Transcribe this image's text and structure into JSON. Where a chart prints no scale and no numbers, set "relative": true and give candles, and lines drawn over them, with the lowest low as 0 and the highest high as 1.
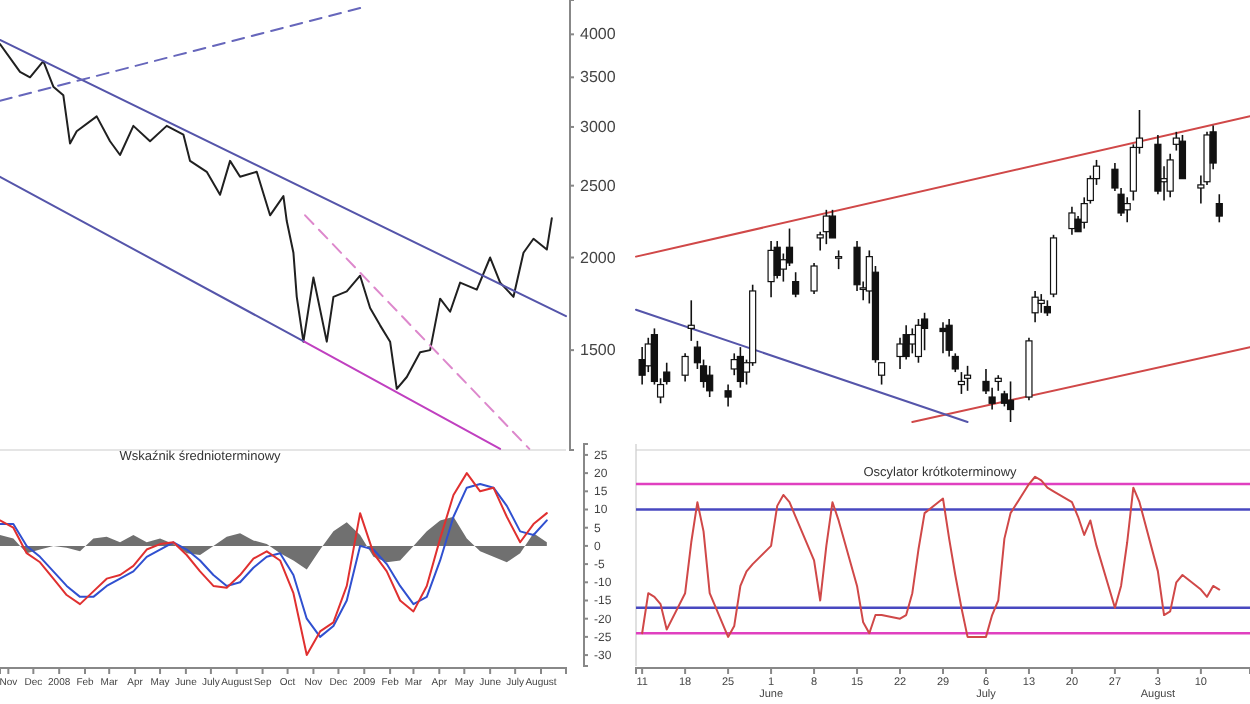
{
  "chart_data": [
    {
      "type": "line",
      "log": true,
      "ylim": [
        1100,
        4450
      ],
      "yticks": [
        1500,
        2000,
        2500,
        3000,
        3500,
        4000
      ],
      "xlim": [
        "2007-10-22",
        "2009-08-31"
      ],
      "tick_labels": "y",
      "series": [
        {
          "color": "#202020",
          "x": [
            "2007-10-22",
            "2007-11-15",
            "2007-11-27",
            "2007-12-13",
            "2007-12-25",
            "2008-01-06",
            "2008-01-14",
            "2008-01-22",
            "2008-02-15",
            "2008-03-02",
            "2008-03-14",
            "2008-03-30",
            "2008-04-19",
            "2008-05-09",
            "2008-05-29",
            "2008-06-06",
            "2008-06-26",
            "2008-07-12",
            "2008-07-24",
            "2008-08-05",
            "2008-08-25",
            "2008-09-10",
            "2008-09-26",
            "2008-09-30",
            "2008-10-08",
            "2008-10-12",
            "2008-10-20",
            "2008-11-01",
            "2008-11-17",
            "2008-11-25",
            "2008-12-11",
            "2008-12-27",
            "2009-01-08",
            "2009-01-20",
            "2009-02-01",
            "2009-02-09",
            "2009-02-21",
            "2009-03-09",
            "2009-03-21",
            "2009-04-02",
            "2009-04-14",
            "2009-04-26",
            "2009-05-16",
            "2009-06-01",
            "2009-06-13",
            "2009-06-29",
            "2009-07-11",
            "2009-07-23",
            "2009-08-08",
            "2009-08-14"
          ],
          "values": [
            3880,
            3560,
            3500,
            3680,
            3400,
            3310,
            2850,
            2960,
            3100,
            2870,
            2750,
            3010,
            2870,
            3010,
            2930,
            2700,
            2610,
            2430,
            2700,
            2570,
            2610,
            2280,
            2420,
            2240,
            2030,
            1770,
            1540,
            1880,
            1540,
            1770,
            1800,
            1890,
            1710,
            1620,
            1540,
            1330,
            1380,
            1490,
            1500,
            1760,
            1690,
            1850,
            1810,
            2000,
            1850,
            1770,
            2030,
            2120,
            2050,
            2260
          ]
        },
        {
          "color": "#5555aa",
          "x": [
            "2007-10-22",
            "2009-08-31"
          ],
          "values": [
            3930,
            1667
          ]
        },
        {
          "color": "#5555aa",
          "x": [
            "2007-10-22",
            "2008-10-21"
          ],
          "values": [
            2570,
            1540
          ]
        },
        {
          "color": "#c040c0",
          "x": [
            "2008-10-21",
            "2009-06-13"
          ],
          "values": [
            1540,
            1104
          ]
        },
        {
          "color": "#dd88cc",
          "line_style": "dashed",
          "x": [
            "2008-10-22",
            "2009-07-18"
          ],
          "values": [
            2280,
            1104
          ]
        },
        {
          "color": "#6666bb",
          "line_style": "dashed",
          "x": [
            "2007-10-22",
            "2008-12-27"
          ],
          "values": [
            3254,
            4340
          ]
        }
      ]
    },
    {
      "type": "line",
      "title": "Wskaźnik średnioterminowy",
      "ylim": [
        -33,
        28
      ],
      "yticks": [
        25,
        20,
        15,
        10,
        5,
        0,
        -5,
        -10,
        -15,
        -20,
        -25,
        -30
      ],
      "xlim": [
        "2007-10-22",
        "2009-08-31"
      ],
      "xticks": [
        {
          "value": "2007-11-01",
          "label": "Nov"
        },
        {
          "value": "2007-12-01",
          "label": "Dec"
        },
        {
          "value": "2008-01-01",
          "label": "2008"
        },
        {
          "value": "2008-02-01",
          "label": "Feb"
        },
        {
          "value": "2008-03-01",
          "label": "Mar"
        },
        {
          "value": "2008-04-01",
          "label": "Apr"
        },
        {
          "value": "2008-05-01",
          "label": "May"
        },
        {
          "value": "2008-06-01",
          "label": "June"
        },
        {
          "value": "2008-07-01",
          "label": "July"
        },
        {
          "value": "2008-08-01",
          "label": "August"
        },
        {
          "value": "2008-09-01",
          "label": "Sep"
        },
        {
          "value": "2008-10-01",
          "label": "Oct"
        },
        {
          "value": "2008-11-01",
          "label": "Nov"
        },
        {
          "value": "2008-12-01",
          "label": "Dec"
        },
        {
          "value": "2009-01-01",
          "label": "2009"
        },
        {
          "value": "2009-02-01",
          "label": "Feb"
        },
        {
          "value": "2009-03-01",
          "label": "Mar"
        },
        {
          "value": "2009-04-01",
          "label": "Apr"
        },
        {
          "value": "2009-05-01",
          "label": "May"
        },
        {
          "value": "2009-06-01",
          "label": "June"
        },
        {
          "value": "2009-07-01",
          "label": "July"
        },
        {
          "value": "2009-08-01",
          "label": "August"
        }
      ],
      "x": [
        "2007-10-22",
        "2007-11-07",
        "2007-11-23",
        "2007-12-09",
        "2007-12-25",
        "2008-01-10",
        "2008-01-26",
        "2008-02-11",
        "2008-02-27",
        "2008-03-14",
        "2008-03-30",
        "2008-04-15",
        "2008-05-01",
        "2008-05-17",
        "2008-06-02",
        "2008-06-18",
        "2008-07-04",
        "2008-07-20",
        "2008-08-05",
        "2008-08-21",
        "2008-09-06",
        "2008-09-22",
        "2008-10-08",
        "2008-10-24",
        "2008-11-09",
        "2008-11-25",
        "2008-12-11",
        "2008-12-27",
        "2009-01-12",
        "2009-01-28",
        "2009-02-13",
        "2009-03-01",
        "2009-03-17",
        "2009-04-02",
        "2009-04-18",
        "2009-05-04",
        "2009-05-20",
        "2009-06-05",
        "2009-06-21",
        "2009-07-07",
        "2009-07-23",
        "2009-08-08"
      ],
      "series": [
        {
          "type": "area",
          "color": "#707070",
          "values": [
            3,
            2,
            -2,
            -1,
            0,
            -0.5,
            -1.5,
            2,
            2.5,
            1,
            3,
            1,
            2,
            0.5,
            -2,
            -2.5,
            0,
            2.5,
            3.5,
            1.5,
            0.5,
            -2,
            -4,
            -6.5,
            -1,
            4,
            6.5,
            3,
            -3,
            -4.5,
            -4,
            0,
            4,
            7,
            8,
            2,
            -1.5,
            -3,
            -4.5,
            -2,
            3.5,
            1
          ]
        },
        {
          "color": "#3050d0",
          "values": [
            6,
            6,
            0,
            -3,
            -7,
            -11,
            -14,
            -14,
            -11,
            -9,
            -7,
            -3,
            -1,
            1,
            -1,
            -4,
            -8,
            -11,
            -10,
            -6,
            -3,
            -2,
            -8,
            -20,
            -25,
            -22,
            -15,
            0,
            -1,
            -5,
            -11,
            -16,
            -14,
            -4,
            8,
            16,
            17,
            16,
            11,
            4,
            3,
            7
          ]
        },
        {
          "color": "#e03030",
          "values": [
            7,
            5,
            -2,
            -4.5,
            -9,
            -13.5,
            -16,
            -12.5,
            -9,
            -8,
            -5.5,
            -1,
            0.5,
            1,
            -2.5,
            -7,
            -11,
            -11.5,
            -8,
            -3.5,
            -1.5,
            -4,
            -13,
            -30,
            -23.5,
            -21,
            -11,
            9,
            -2,
            -7,
            -15,
            -18,
            -11,
            2,
            14,
            20,
            15,
            16,
            8,
            1,
            6,
            9
          ]
        }
      ]
    },
    {
      "type": "candlestick",
      "relative": true,
      "xlim": [
        "2009-05-10",
        "2009-08-18"
      ],
      "tick_labels": false,
      "x": [
        "2009-05-11",
        "2009-05-12",
        "2009-05-13",
        "2009-05-14",
        "2009-05-15",
        "2009-05-18",
        "2009-05-19",
        "2009-05-20",
        "2009-05-21",
        "2009-05-22",
        "2009-05-25",
        "2009-05-26",
        "2009-05-27",
        "2009-05-28",
        "2009-05-29",
        "2009-06-01",
        "2009-06-02",
        "2009-06-03",
        "2009-06-04",
        "2009-06-05",
        "2009-06-08",
        "2009-06-09",
        "2009-06-10",
        "2009-06-11",
        "2009-06-12",
        "2009-06-15",
        "2009-06-16",
        "2009-06-17",
        "2009-06-18",
        "2009-06-19",
        "2009-06-22",
        "2009-06-23",
        "2009-06-24",
        "2009-06-25",
        "2009-06-26",
        "2009-06-29",
        "2009-06-30",
        "2009-07-01",
        "2009-07-02",
        "2009-07-03",
        "2009-07-06",
        "2009-07-07",
        "2009-07-08",
        "2009-07-09",
        "2009-07-10",
        "2009-07-13",
        "2009-07-14",
        "2009-07-15",
        "2009-07-16",
        "2009-07-17",
        "2009-07-20",
        "2009-07-21",
        "2009-07-22",
        "2009-07-23",
        "2009-07-24",
        "2009-07-27",
        "2009-07-28",
        "2009-07-29",
        "2009-07-30",
        "2009-07-31",
        "2009-08-03",
        "2009-08-04",
        "2009-08-05",
        "2009-08-06",
        "2009-08-07",
        "2009-08-10",
        "2009-08-11",
        "2009-08-12",
        "2009-08-13"
      ],
      "ohlc": [
        [
          0.2,
          0.24,
          0.12,
          0.15
        ],
        [
          0.18,
          0.27,
          0.16,
          0.25
        ],
        [
          0.28,
          0.3,
          0.12,
          0.13
        ],
        [
          0.08,
          0.14,
          0.06,
          0.12
        ],
        [
          0.16,
          0.19,
          0.12,
          0.13
        ],
        [
          0.15,
          0.22,
          0.13,
          0.21
        ],
        [
          0.3,
          0.39,
          0.26,
          0.31
        ],
        [
          0.24,
          0.26,
          0.17,
          0.19
        ],
        [
          0.18,
          0.2,
          0.11,
          0.13
        ],
        [
          0.15,
          0.18,
          0.08,
          0.1
        ],
        [
          0.1,
          0.12,
          0.05,
          0.08
        ],
        [
          0.17,
          0.22,
          0.15,
          0.2
        ],
        [
          0.21,
          0.24,
          0.11,
          0.13
        ],
        [
          0.16,
          0.2,
          0.12,
          0.19
        ],
        [
          0.19,
          0.44,
          0.18,
          0.42
        ],
        [
          0.45,
          0.58,
          0.4,
          0.55
        ],
        [
          0.56,
          0.58,
          0.46,
          0.47
        ],
        [
          0.49,
          0.54,
          0.45,
          0.52
        ],
        [
          0.56,
          0.62,
          0.5,
          0.51
        ],
        [
          0.45,
          0.48,
          0.4,
          0.41
        ],
        [
          0.42,
          0.51,
          0.41,
          0.5
        ],
        [
          0.59,
          0.61,
          0.55,
          0.6
        ],
        [
          0.61,
          0.68,
          0.57,
          0.66
        ],
        [
          0.66,
          0.68,
          0.59,
          0.59
        ],
        [
          0.53,
          0.55,
          0.49,
          0.53
        ],
        [
          0.56,
          0.58,
          0.42,
          0.44
        ],
        [
          0.43,
          0.45,
          0.39,
          0.43
        ],
        [
          0.42,
          0.55,
          0.38,
          0.53
        ],
        [
          0.48,
          0.5,
          0.19,
          0.2
        ],
        [
          0.15,
          0.19,
          0.12,
          0.19
        ],
        [
          0.21,
          0.27,
          0.17,
          0.25
        ],
        [
          0.28,
          0.31,
          0.2,
          0.21
        ],
        [
          0.25,
          0.3,
          0.22,
          0.28
        ],
        [
          0.21,
          0.33,
          0.19,
          0.31
        ],
        [
          0.33,
          0.35,
          0.23,
          0.3
        ],
        [
          0.3,
          0.32,
          0.22,
          0.29
        ],
        [
          0.31,
          0.33,
          0.21,
          0.23
        ],
        [
          0.21,
          0.22,
          0.16,
          0.17
        ],
        [
          0.12,
          0.16,
          0.09,
          0.13
        ],
        [
          0.14,
          0.18,
          0.1,
          0.15
        ],
        [
          0.13,
          0.17,
          0.09,
          0.1
        ],
        [
          0.08,
          0.11,
          0.04,
          0.06
        ],
        [
          0.13,
          0.15,
          0.1,
          0.14
        ],
        [
          0.09,
          0.1,
          0.05,
          0.06
        ],
        [
          0.07,
          0.13,
          0,
          0.04
        ],
        [
          0.08,
          0.27,
          0.07,
          0.26
        ],
        [
          0.35,
          0.42,
          0.32,
          0.4
        ],
        [
          0.38,
          0.41,
          0.35,
          0.39
        ],
        [
          0.37,
          0.39,
          0.34,
          0.35
        ],
        [
          0.41,
          0.6,
          0.4,
          0.59
        ],
        [
          0.62,
          0.69,
          0.6,
          0.67
        ],
        [
          0.65,
          0.66,
          0.61,
          0.61
        ],
        [
          0.64,
          0.72,
          0.62,
          0.7
        ],
        [
          0.71,
          0.79,
          0.7,
          0.78
        ],
        [
          0.78,
          0.84,
          0.76,
          0.82
        ],
        [
          0.81,
          0.83,
          0.74,
          0.75
        ],
        [
          0.73,
          0.75,
          0.66,
          0.67
        ],
        [
          0.68,
          0.72,
          0.64,
          0.7
        ],
        [
          0.74,
          0.89,
          0.71,
          0.88
        ],
        [
          0.88,
          1,
          0.86,
          0.91
        ],
        [
          0.89,
          0.92,
          0.73,
          0.74
        ],
        [
          0.77,
          0.82,
          0.71,
          0.78
        ],
        [
          0.74,
          0.86,
          0.72,
          0.84
        ],
        [
          0.89,
          0.93,
          0.87,
          0.91
        ],
        [
          0.9,
          0.92,
          0.78,
          0.78
        ],
        [
          0.75,
          0.79,
          0.7,
          0.76
        ],
        [
          0.77,
          0.93,
          0.76,
          0.92
        ],
        [
          0.93,
          0.95,
          0.81,
          0.83
        ],
        [
          0.7,
          0.73,
          0.64,
          0.66
        ]
      ],
      "series": [
        {
          "type": "line",
          "color": "#d04848",
          "x": [
            "2009-05-10",
            "2009-08-18"
          ],
          "values": [
            0.53,
            0.98
          ]
        },
        {
          "type": "line",
          "color": "#d04848",
          "x": [
            "2009-06-24",
            "2009-08-18"
          ],
          "values": [
            0,
            0.24
          ]
        },
        {
          "type": "line",
          "color": "#5555aa",
          "x": [
            "2009-05-10",
            "2009-07-03"
          ],
          "values": [
            0.36,
            0
          ]
        }
      ]
    },
    {
      "type": "line",
      "title": "Oscylator krótkoterminowy",
      "ylim": [
        -33,
        28
      ],
      "xlim": [
        "2009-05-10",
        "2009-08-18"
      ],
      "tick_labels": "x",
      "xticks": [
        {
          "value": "2009-05-11",
          "label": "11"
        },
        {
          "value": "2009-05-18",
          "label": "18"
        },
        {
          "value": "2009-05-25",
          "label": "25"
        },
        {
          "value": "2009-06-01",
          "label": "1\nJune"
        },
        {
          "value": "2009-06-08",
          "label": "8"
        },
        {
          "value": "2009-06-15",
          "label": "15"
        },
        {
          "value": "2009-06-22",
          "label": "22"
        },
        {
          "value": "2009-06-29",
          "label": "29"
        },
        {
          "value": "2009-07-06",
          "label": "6\nJuly"
        },
        {
          "value": "2009-07-13",
          "label": "13"
        },
        {
          "value": "2009-07-20",
          "label": "20"
        },
        {
          "value": "2009-07-27",
          "label": "27"
        },
        {
          "value": "2009-08-03",
          "label": "3\nAugust"
        },
        {
          "value": "2009-08-10",
          "label": "10"
        }
      ],
      "ref_lines": [
        {
          "axis": "y",
          "value": 17,
          "color": "#e040c0"
        },
        {
          "axis": "y",
          "value": 10,
          "color": "#4848c0"
        },
        {
          "axis": "y",
          "value": -17,
          "color": "#4848c0"
        },
        {
          "axis": "y",
          "value": -24,
          "color": "#e040c0"
        }
      ],
      "x": [
        "2009-05-11",
        "2009-05-12",
        "2009-05-13",
        "2009-05-14",
        "2009-05-15",
        "2009-05-18",
        "2009-05-19",
        "2009-05-20",
        "2009-05-21",
        "2009-05-22",
        "2009-05-25",
        "2009-05-26",
        "2009-05-27",
        "2009-05-28",
        "2009-05-29",
        "2009-06-01",
        "2009-06-02",
        "2009-06-03",
        "2009-06-04",
        "2009-06-05",
        "2009-06-08",
        "2009-06-09",
        "2009-06-10",
        "2009-06-11",
        "2009-06-12",
        "2009-06-15",
        "2009-06-16",
        "2009-06-17",
        "2009-06-18",
        "2009-06-19",
        "2009-06-22",
        "2009-06-23",
        "2009-06-24",
        "2009-06-25",
        "2009-06-26",
        "2009-06-29",
        "2009-06-30",
        "2009-07-01",
        "2009-07-02",
        "2009-07-03",
        "2009-07-06",
        "2009-07-07",
        "2009-07-08",
        "2009-07-09",
        "2009-07-10",
        "2009-07-13",
        "2009-07-14",
        "2009-07-15",
        "2009-07-16",
        "2009-07-17",
        "2009-07-20",
        "2009-07-21",
        "2009-07-22",
        "2009-07-23",
        "2009-07-24",
        "2009-07-27",
        "2009-07-28",
        "2009-07-29",
        "2009-07-30",
        "2009-07-31",
        "2009-08-03",
        "2009-08-04",
        "2009-08-05",
        "2009-08-06",
        "2009-08-07",
        "2009-08-10",
        "2009-08-11",
        "2009-08-12",
        "2009-08-13"
      ],
      "series": [
        {
          "color": "#d04848",
          "values": [
            -24,
            -13,
            -14,
            -16,
            -23,
            -13,
            1,
            12,
            4,
            -13,
            -25,
            -22,
            -11,
            -7,
            -5,
            0,
            11,
            14,
            12,
            8,
            -4,
            -15,
            0,
            12,
            7,
            -11,
            -21,
            -24,
            -19,
            -19,
            -20,
            -19,
            -13,
            -1,
            9,
            13,
            2,
            -8,
            -17,
            -25,
            -25,
            -19,
            -15,
            2,
            9,
            17,
            19,
            18,
            16,
            15,
            12,
            8,
            3,
            7,
            0,
            -17,
            -11,
            1,
            16,
            12,
            -7,
            -19,
            -18,
            -10,
            -8,
            -12,
            -14,
            -11,
            -12
          ]
        }
      ]
    }
  ]
}
